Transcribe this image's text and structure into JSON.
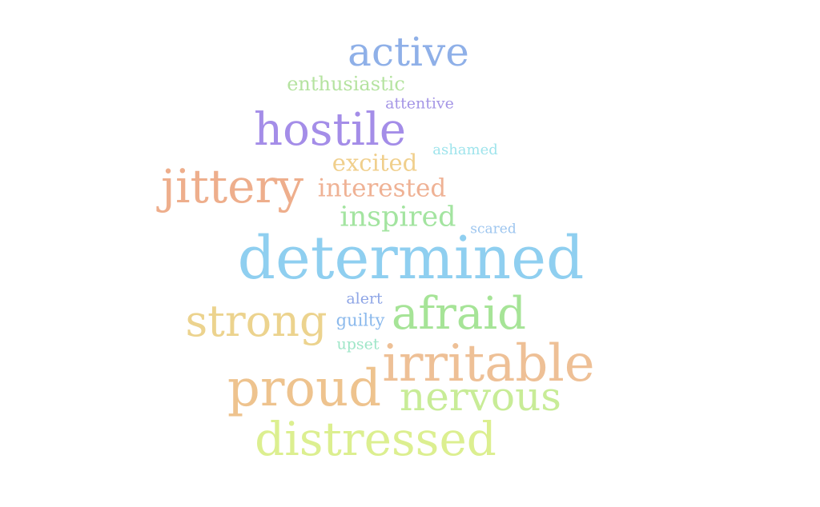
{
  "words": {
    "active": {
      "text": "active",
      "color": "#8fb0e8"
    },
    "enthusiastic": {
      "text": "enthusiastic",
      "color": "#b5e3a0"
    },
    "attentive": {
      "text": "attentive",
      "color": "#a596e6"
    },
    "hostile": {
      "text": "hostile",
      "color": "#a48de8"
    },
    "ashamed": {
      "text": "ashamed",
      "color": "#9fe4ec"
    },
    "excited": {
      "text": "excited",
      "color": "#f0cf8c"
    },
    "jittery": {
      "text": "jittery",
      "color": "#eeae8c"
    },
    "interested": {
      "text": "interested",
      "color": "#efb295"
    },
    "inspired": {
      "text": "inspired",
      "color": "#a3e4a0"
    },
    "scared": {
      "text": "scared",
      "color": "#9ec6ef"
    },
    "determined": {
      "text": "determined",
      "color": "#8fcff0"
    },
    "alert": {
      "text": "alert",
      "color": "#8fa6e6"
    },
    "afraid": {
      "text": "afraid",
      "color": "#a6e497"
    },
    "strong": {
      "text": "strong",
      "color": "#ecd38e"
    },
    "guilty": {
      "text": "guilty",
      "color": "#8bb9ec"
    },
    "upset": {
      "text": "upset",
      "color": "#9fe6c8"
    },
    "irritable": {
      "text": "irritable",
      "color": "#eec096"
    },
    "proud": {
      "text": "proud",
      "color": "#eec38e"
    },
    "nervous": {
      "text": "nervous",
      "color": "#c8ec97"
    },
    "distressed": {
      "text": "distressed",
      "color": "#dcef90"
    }
  }
}
